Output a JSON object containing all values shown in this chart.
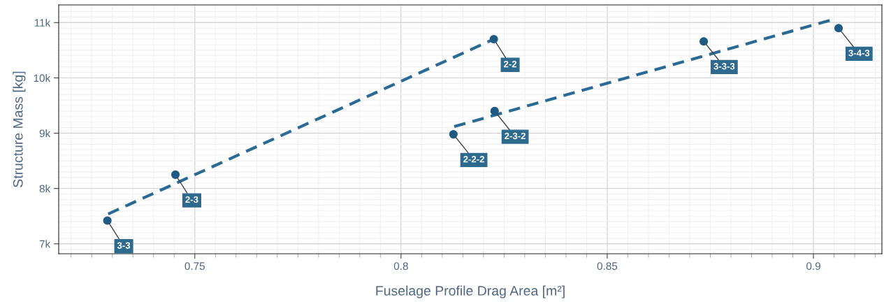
{
  "chart_data": {
    "type": "scatter",
    "xlabel": "Fuselage Profile Drag Area [m²]",
    "ylabel": "Structure Mass [kg]",
    "xlim": [
      0.717,
      0.9166
    ],
    "ylim": [
      6820,
      11320
    ],
    "xticks": [
      0.75,
      0.8,
      0.85,
      0.9
    ],
    "yticks": [
      {
        "value": 7000,
        "label": "7k"
      },
      {
        "value": 8000,
        "label": "8k"
      },
      {
        "value": 9000,
        "label": "9k"
      },
      {
        "value": 10000,
        "label": "10k"
      },
      {
        "value": 11000,
        "label": "11k"
      }
    ],
    "grid": true,
    "legend": false,
    "series": [
      {
        "color": "#1f5a84",
        "marker": "circle",
        "x": [
          0.7288,
          0.7453,
          0.8225,
          0.8127,
          0.8227,
          0.8734,
          0.9061
        ],
        "values": [
          7420,
          8250,
          10700,
          8980,
          9400,
          10660,
          10900
        ]
      },
      {
        "type": "line",
        "color": "#2a6a94",
        "line_style": "dashed",
        "marker": "none",
        "x": [
          0.729,
          0.8225
        ],
        "values": [
          7540,
          10700
        ]
      },
      {
        "type": "line",
        "color": "#2a6a94",
        "line_style": "dashed",
        "marker": "none",
        "x": [
          0.8129,
          0.9044
        ],
        "values": [
          9120,
          11050
        ]
      }
    ],
    "annotations": [
      {
        "text": "3-3",
        "x": 0.7288,
        "y": 7420
      },
      {
        "text": "2-3",
        "x": 0.7453,
        "y": 8250
      },
      {
        "text": "2-2",
        "x": 0.8225,
        "y": 10700
      },
      {
        "text": "2-2-2",
        "x": 0.8127,
        "y": 8980
      },
      {
        "text": "2-3-2",
        "x": 0.8227,
        "y": 9400
      },
      {
        "text": "3-3-3",
        "x": 0.8734,
        "y": 10660
      },
      {
        "text": "3-4-3",
        "x": 0.9061,
        "y": 10900
      }
    ]
  }
}
